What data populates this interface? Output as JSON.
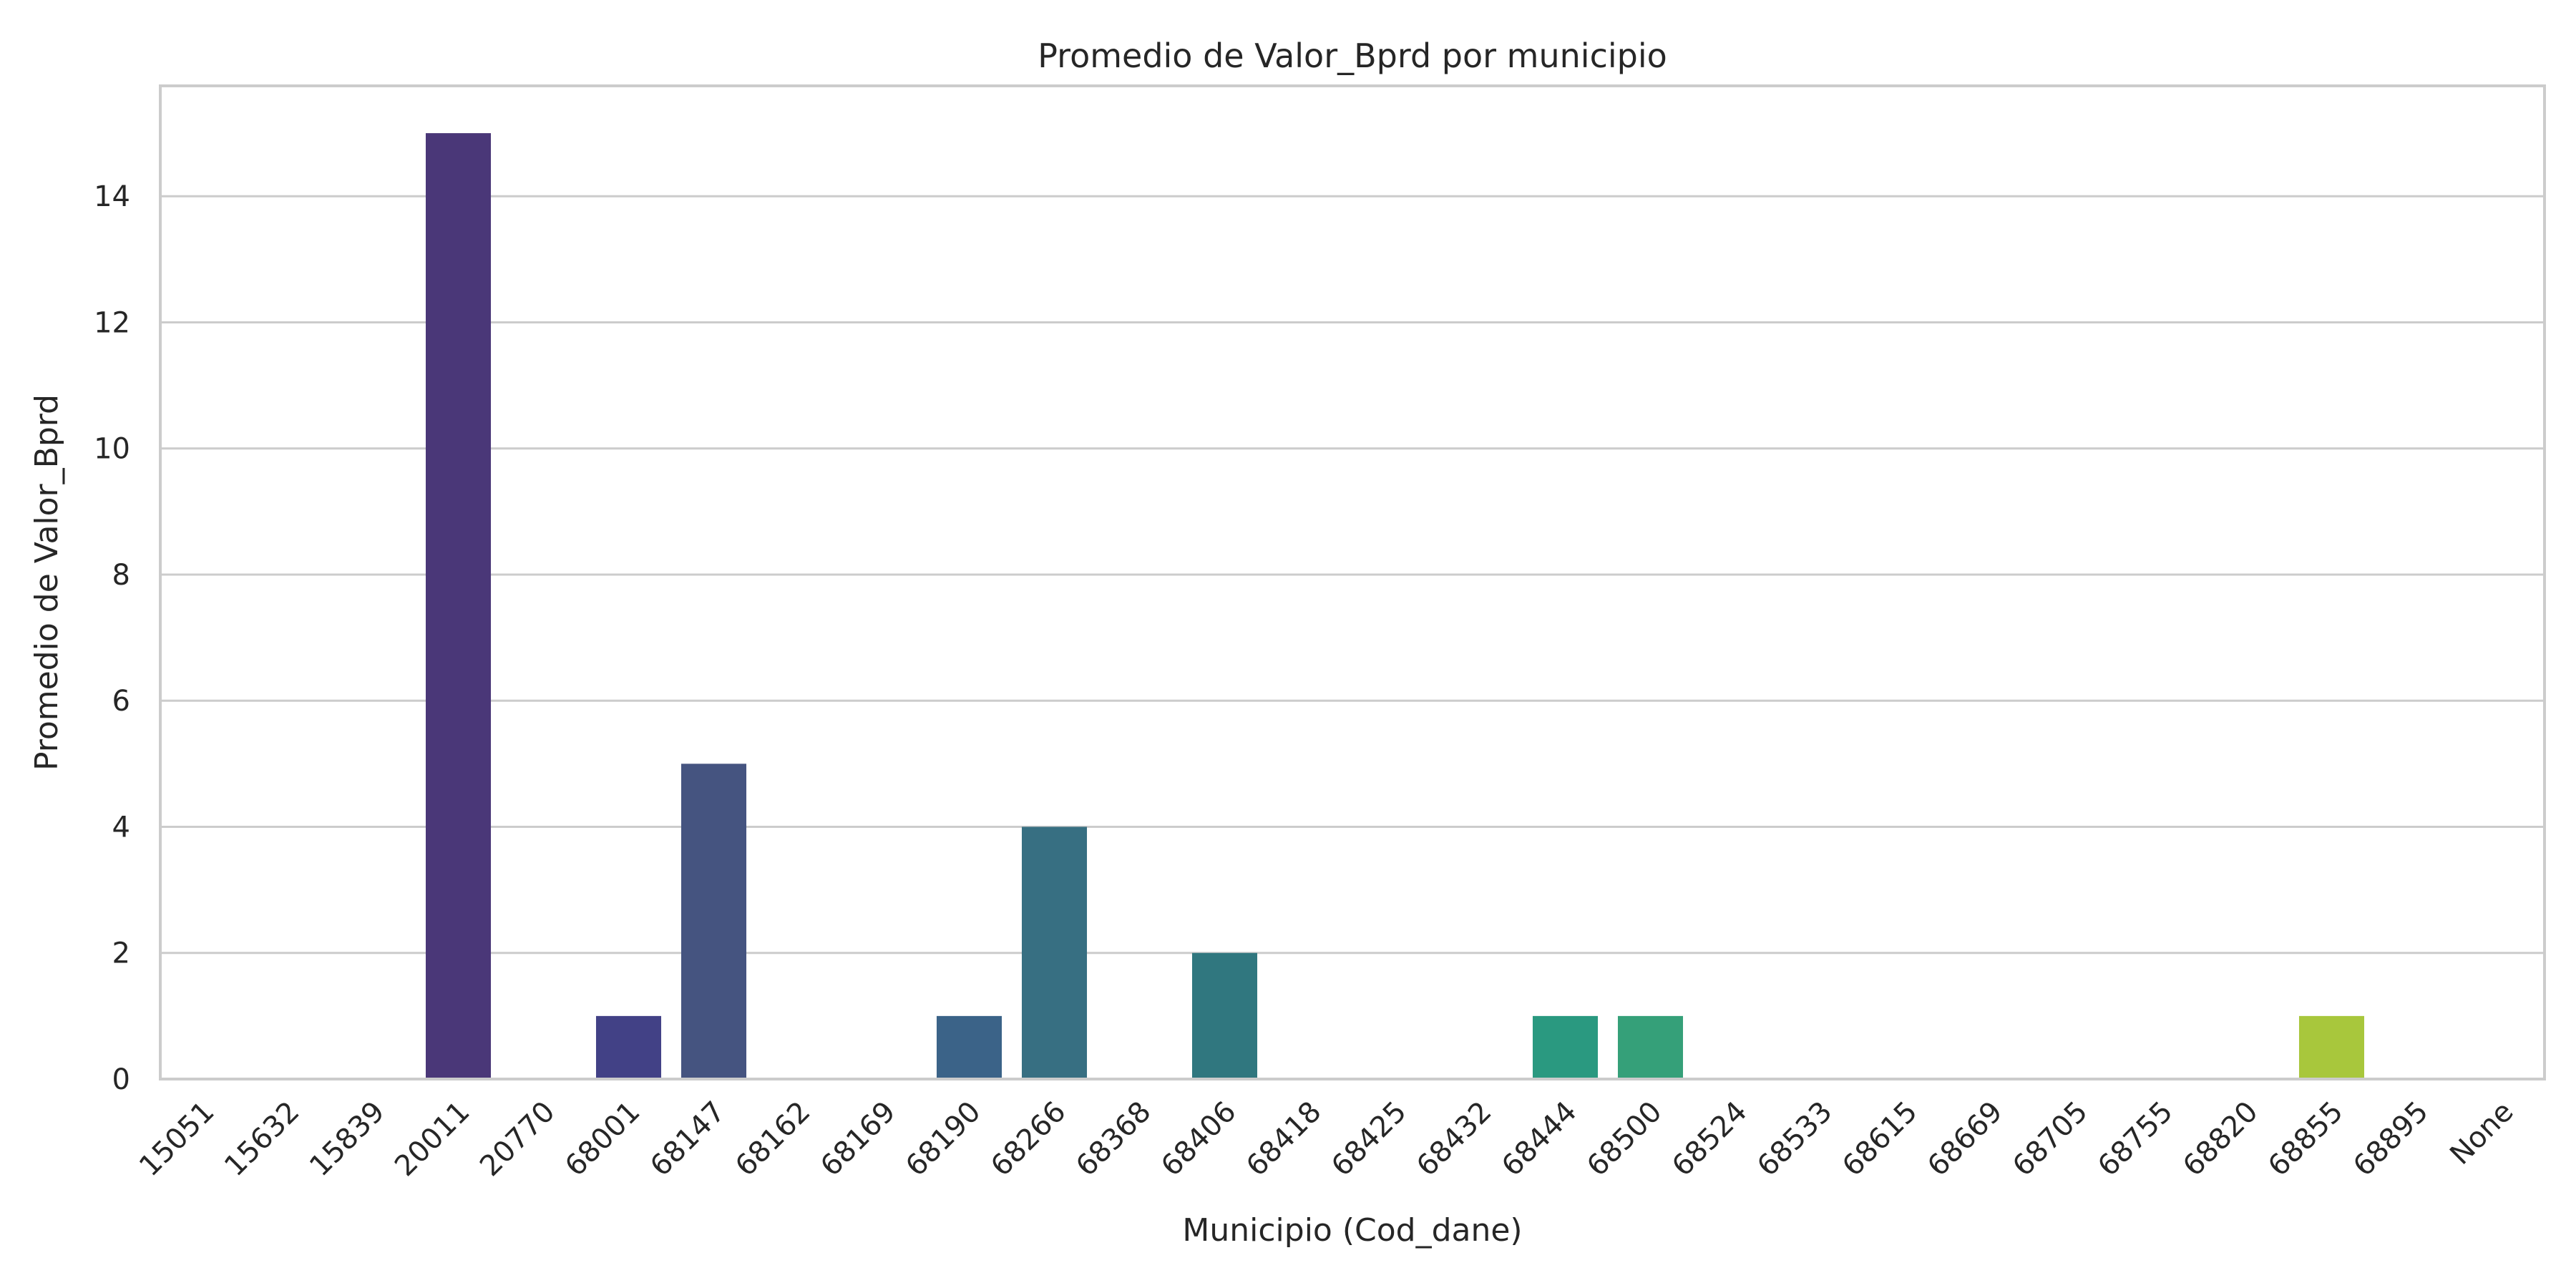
{
  "chart_data": {
    "type": "bar",
    "title": "Promedio de Valor_Bprd por municipio",
    "xlabel": "Municipio (Cod_dane)",
    "ylabel": "Promedio de Valor_Bprd",
    "categories": [
      "15051",
      "15632",
      "15839",
      "20011",
      "20770",
      "68001",
      "68147",
      "68162",
      "68169",
      "68190",
      "68266",
      "68368",
      "68406",
      "68418",
      "68425",
      "68432",
      "68444",
      "68500",
      "68524",
      "68533",
      "68615",
      "68669",
      "68705",
      "68755",
      "68820",
      "68855",
      "68895",
      "None"
    ],
    "values": [
      0,
      0,
      0,
      15,
      0,
      1,
      5,
      0,
      0,
      1,
      4,
      0,
      2,
      0,
      0,
      0,
      1,
      1,
      0,
      0,
      0,
      0,
      0,
      0,
      0,
      1,
      0,
      0
    ],
    "colors": [
      "#472c7a",
      "#46307e",
      "#45347f",
      "#4a3778",
      "#413d84",
      "#424186",
      "#455480",
      "#3f4788",
      "#3b528b",
      "#3b6388",
      "#376f82",
      "#355f8d",
      "#30777f",
      "#2e6e8e",
      "#2c728e",
      "#29798e",
      "#2a9980",
      "#35a079",
      "#21918c",
      "#1f958b",
      "#1e9b8a",
      "#22a785",
      "#2fb47c",
      "#54c568",
      "#7ad151",
      "#a8c73c",
      "#d2e21b",
      "#fde725"
    ],
    "yticks": [
      0,
      2,
      4,
      6,
      8,
      10,
      12,
      14
    ],
    "ylim": [
      0,
      15.75
    ],
    "grid": "horizontal",
    "legend": "none"
  }
}
